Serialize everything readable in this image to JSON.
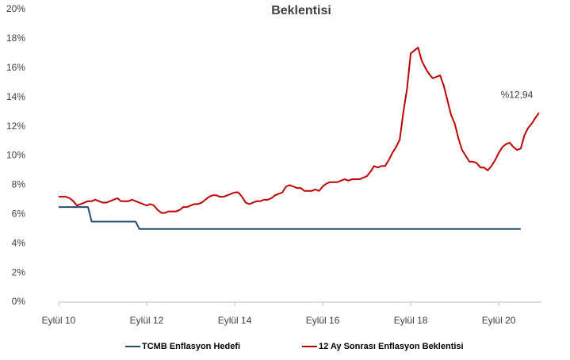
{
  "chart_data": {
    "type": "line",
    "title": "Beklentisi",
    "annotation": "%12,94",
    "categories": [
      "Eylül 10",
      null,
      null,
      null,
      null,
      null,
      null,
      null,
      null,
      null,
      null,
      null,
      null,
      null,
      null,
      null,
      null,
      null,
      null,
      null,
      null,
      null,
      null,
      null,
      "Eylül 12",
      null,
      null,
      null,
      null,
      null,
      null,
      null,
      null,
      null,
      null,
      null,
      null,
      null,
      null,
      null,
      null,
      null,
      null,
      null,
      null,
      null,
      null,
      null,
      "Eylül 14",
      null,
      null,
      null,
      null,
      null,
      null,
      null,
      null,
      null,
      null,
      null,
      null,
      null,
      null,
      null,
      null,
      null,
      null,
      null,
      null,
      null,
      null,
      null,
      "Eylül 16",
      null,
      null,
      null,
      null,
      null,
      null,
      null,
      null,
      null,
      null,
      null,
      null,
      null,
      null,
      null,
      null,
      null,
      null,
      null,
      null,
      null,
      null,
      null,
      "Eylül 18",
      null,
      null,
      null,
      null,
      null,
      null,
      null,
      null,
      null,
      null,
      null,
      null,
      null,
      null,
      null,
      null,
      null,
      null,
      null,
      null,
      null,
      null,
      null,
      "Eylül 20",
      null,
      null,
      null,
      null,
      null,
      null,
      null,
      null,
      null,
      null,
      null
    ],
    "series": [
      {
        "name": "TCMB Enflasyon Hedefi",
        "color": "#1f4e6e",
        "values": [
          6.5,
          6.5,
          6.5,
          6.5,
          6.5,
          6.5,
          6.5,
          6.5,
          6.5,
          5.5,
          5.5,
          5.5,
          5.5,
          5.5,
          5.5,
          5.5,
          5.5,
          5.5,
          5.5,
          5.5,
          5.5,
          5.5,
          5,
          5,
          5,
          5,
          5,
          5,
          5,
          5,
          5,
          5,
          5,
          5,
          5,
          5,
          5,
          5,
          5,
          5,
          5,
          5,
          5,
          5,
          5,
          5,
          5,
          5,
          5,
          5,
          5,
          5,
          5,
          5,
          5,
          5,
          5,
          5,
          5,
          5,
          5,
          5,
          5,
          5,
          5,
          5,
          5,
          5,
          5,
          5,
          5,
          5,
          5,
          5,
          5,
          5,
          5,
          5,
          5,
          5,
          5,
          5,
          5,
          5,
          5,
          5,
          5,
          5,
          5,
          5,
          5,
          5,
          5,
          5,
          5,
          5,
          5,
          5,
          5,
          5,
          5,
          5,
          5,
          5,
          5,
          5,
          5,
          5,
          5,
          5,
          5,
          5,
          5,
          5,
          5,
          5,
          5,
          5,
          5,
          5,
          5,
          5,
          5,
          5,
          5,
          5,
          5,
          null,
          null,
          null,
          null,
          null
        ]
      },
      {
        "name": "12 Ay Sonrası Enflasyon Beklentisi",
        "color": "#c00000",
        "values": [
          7.2,
          7.2,
          7.2,
          7.1,
          6.9,
          6.6,
          6.7,
          6.8,
          6.9,
          6.9,
          7.0,
          6.9,
          6.8,
          6.8,
          6.9,
          7.0,
          7.1,
          6.9,
          6.9,
          6.9,
          7.0,
          6.9,
          6.8,
          6.7,
          6.6,
          6.7,
          6.6,
          6.3,
          6.1,
          6.1,
          6.2,
          6.2,
          6.2,
          6.3,
          6.5,
          6.5,
          6.6,
          6.7,
          6.7,
          6.8,
          7.0,
          7.2,
          7.3,
          7.3,
          7.2,
          7.2,
          7.3,
          7.4,
          7.5,
          7.5,
          7.2,
          6.8,
          6.7,
          6.8,
          6.9,
          6.9,
          7.0,
          7.0,
          7.1,
          7.3,
          7.4,
          7.5,
          7.9,
          8.0,
          7.9,
          7.8,
          7.8,
          7.6,
          7.6,
          7.6,
          7.7,
          7.6,
          7.9,
          8.1,
          8.2,
          8.2,
          8.2,
          8.3,
          8.4,
          8.3,
          8.4,
          8.4,
          8.4,
          8.5,
          8.6,
          8.9,
          9.3,
          9.2,
          9.3,
          9.3,
          9.7,
          10.2,
          10.6,
          11.1,
          13.0,
          14.6,
          17.0,
          17.2,
          17.4,
          16.5,
          16.0,
          15.6,
          15.3,
          15.4,
          15.5,
          14.8,
          13.8,
          12.8,
          12.2,
          11.2,
          10.4,
          10.0,
          9.6,
          9.6,
          9.5,
          9.2,
          9.2,
          9.0,
          9.3,
          9.7,
          10.2,
          10.6,
          10.8,
          10.9,
          10.6,
          10.4,
          10.5,
          11.4,
          11.9,
          12.2,
          12.6,
          12.94
        ]
      }
    ],
    "ylim": [
      0,
      20
    ],
    "yticks": [
      {
        "value": 0,
        "label": "0%"
      },
      {
        "value": 2,
        "label": "2%"
      },
      {
        "value": 4,
        "label": "4%"
      },
      {
        "value": 6,
        "label": "6%"
      },
      {
        "value": 8,
        "label": "8%"
      },
      {
        "value": 10,
        "label": "10%"
      },
      {
        "value": 12,
        "label": "12%"
      },
      {
        "value": 14,
        "label": "14%"
      },
      {
        "value": 16,
        "label": "16%"
      },
      {
        "value": 18,
        "label": "18%"
      },
      {
        "value": 20,
        "label": "20%"
      }
    ],
    "grid": false,
    "legend": "bottom"
  }
}
